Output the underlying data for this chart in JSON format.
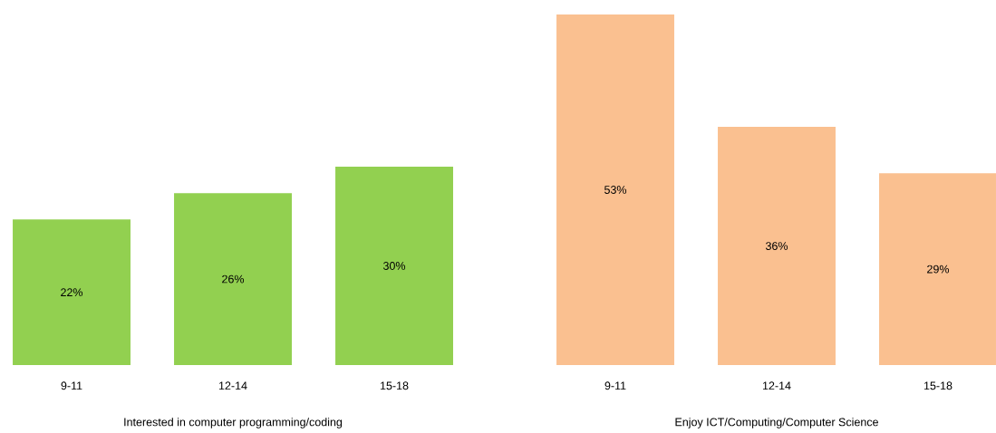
{
  "chart_data": [
    {
      "type": "bar",
      "categories": [
        "9-11",
        "12-14",
        "15-18"
      ],
      "values": [
        22,
        26,
        30
      ],
      "value_labels": [
        "22%",
        "26%",
        "30%"
      ],
      "color": "#92d050",
      "xlabel": "Interested in computer programming/coding"
    },
    {
      "type": "bar",
      "categories": [
        "9-11",
        "12-14",
        "15-18"
      ],
      "values": [
        53,
        36,
        29
      ],
      "value_labels": [
        "53%",
        "36%",
        "29%"
      ],
      "color": "#fac090",
      "xlabel": "Enjoy ICT/Computing/Computer Science"
    }
  ]
}
